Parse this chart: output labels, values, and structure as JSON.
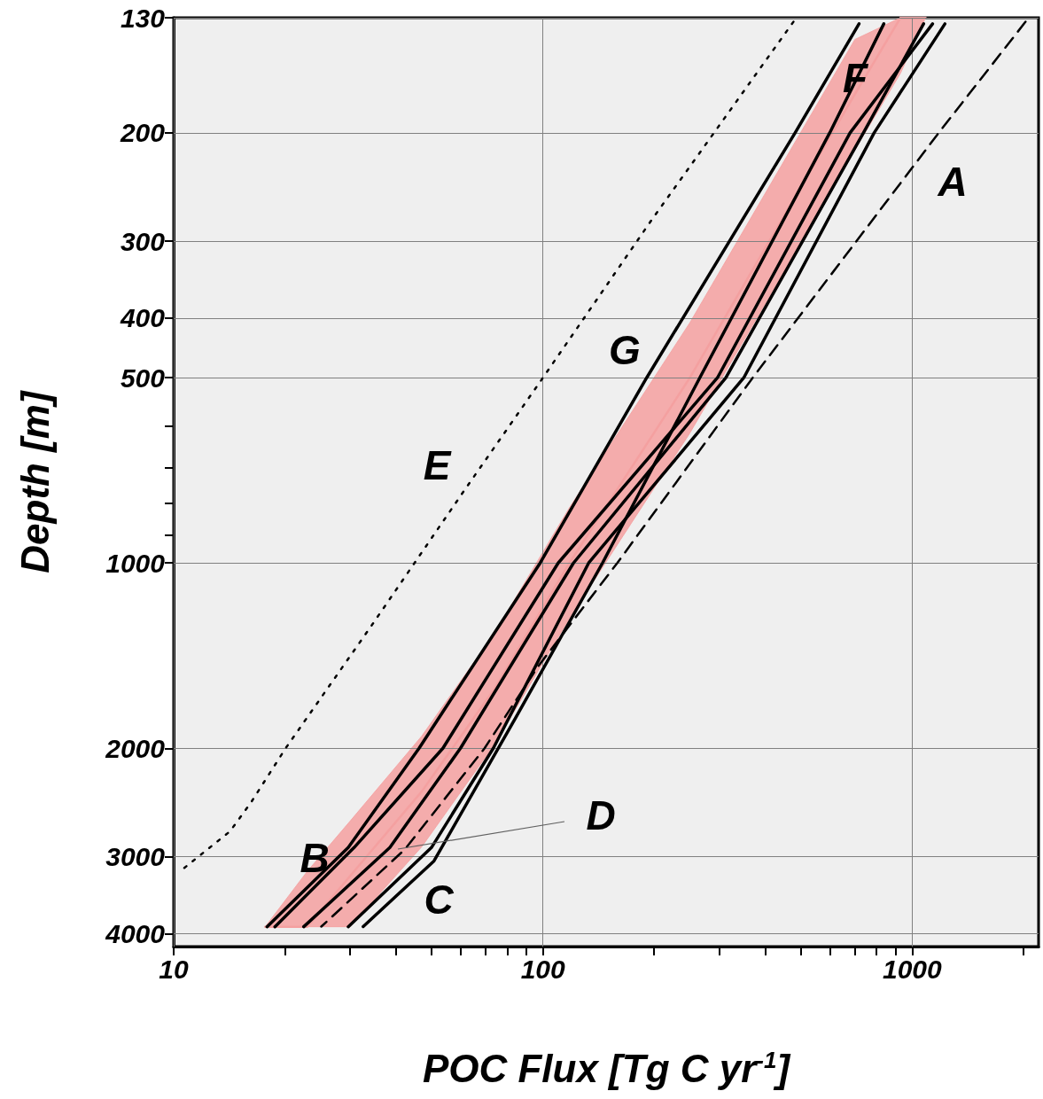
{
  "chart_data": {
    "type": "line",
    "xlabel": "POC Flux [Tg C yr$^{-1}$]",
    "ylabel": "Depth [m]",
    "log": "xy",
    "grid": true,
    "marker": "none",
    "xlim": [
      10,
      2200
    ],
    "ylim": [
      4200,
      130
    ],
    "xticks": [
      10,
      {
        "value": 20,
        "label": null
      },
      {
        "value": 30,
        "label": null
      },
      {
        "value": 40,
        "label": null
      },
      {
        "value": 50,
        "label": null
      },
      {
        "value": 60,
        "label": null
      },
      {
        "value": 70,
        "label": null
      },
      {
        "value": 80,
        "label": null
      },
      {
        "value": 90,
        "label": null
      },
      100,
      {
        "value": 200,
        "label": null
      },
      {
        "value": 300,
        "label": null
      },
      {
        "value": 400,
        "label": null
      },
      {
        "value": 500,
        "label": null
      },
      {
        "value": 600,
        "label": null
      },
      {
        "value": 700,
        "label": null
      },
      {
        "value": 800,
        "label": null
      },
      {
        "value": 900,
        "label": null
      },
      1000,
      {
        "value": 2000,
        "label": null
      }
    ],
    "yticks": [
      130,
      200,
      300,
      400,
      500,
      {
        "value": 600,
        "label": null
      },
      {
        "value": 700,
        "label": null
      },
      {
        "value": 800,
        "label": null
      },
      {
        "value": 900,
        "label": null
      },
      1000,
      2000,
      3000,
      4000
    ],
    "series": [
      {
        "color": "#f4a0a0",
        "x": [
          17.7,
          23,
          30,
          47,
          74,
          118,
          250,
          700,
          930,
          1087
        ],
        "values": [
          3900,
          3900,
          3230,
          2350,
          1600,
          1000,
          500,
          173,
          130,
          130
        ],
        "lower": [
          3900,
          3170,
          2630,
          1910,
          1300,
          813,
          407,
          141,
          130,
          130
        ],
        "upper": [
          3900,
          3900,
          3900,
          2890,
          1970,
          1230,
          615,
          213,
          160,
          130
        ]
      },
      {
        "color": "#000000",
        "line_style": "dotted",
        "x": [
          477,
          197,
          100,
          60.8,
          34.4,
          20.1,
          16.2,
          14.2,
          10.4
        ],
        "values": [
          132,
          277,
          500,
          767,
          1262,
          2000,
          2449,
          2730,
          3170
        ]
      },
      {
        "color": "#000000",
        "line_style": "dashed",
        "x": [
          2028,
          1180,
          370,
          159,
          97.3,
          69.5,
          42.3,
          25.1
        ],
        "values": [
          132,
          200,
          500,
          1000,
          1469,
          2000,
          2919,
          3898
        ]
      },
      {
        "color": "#000000",
        "line_style": "solid",
        "x": [
          838,
          598,
          266,
          145,
          84.3,
          50.7,
          32.6
        ],
        "values": [
          133,
          200,
          500,
          1000,
          1786,
          3049,
          3898
        ]
      },
      {
        "color": "#000000",
        "line_style": "solid",
        "x": [
          718,
          482,
          191,
          98.3,
          46.2,
          29.7,
          17.9
        ],
        "values": [
          133,
          200,
          500,
          1000,
          2000,
          2900,
          3900
        ]
      },
      {
        "color": "#000000",
        "line_style": "solid",
        "x": [
          1136,
          679,
          297,
          110,
          53.6,
          30.8,
          18.8
        ],
        "values": [
          133,
          200,
          500,
          1000,
          2000,
          2900,
          3900
        ]
      },
      {
        "color": "#000000",
        "line_style": "solid",
        "x": [
          1074,
          738,
          313,
          121,
          59.8,
          38.5,
          22.5
        ],
        "values": [
          133,
          200,
          500,
          1000,
          2000,
          2900,
          3900
        ]
      },
      {
        "color": "#000000",
        "line_style": "solid",
        "x": [
          1227,
          789,
          350,
          133,
          73.4,
          49.9,
          29.7
        ],
        "values": [
          133,
          200,
          500,
          1000,
          2000,
          2900,
          3900
        ]
      }
    ],
    "annotations": [
      "A",
      "B",
      "C",
      "D",
      "E",
      "F",
      "G"
    ]
  }
}
